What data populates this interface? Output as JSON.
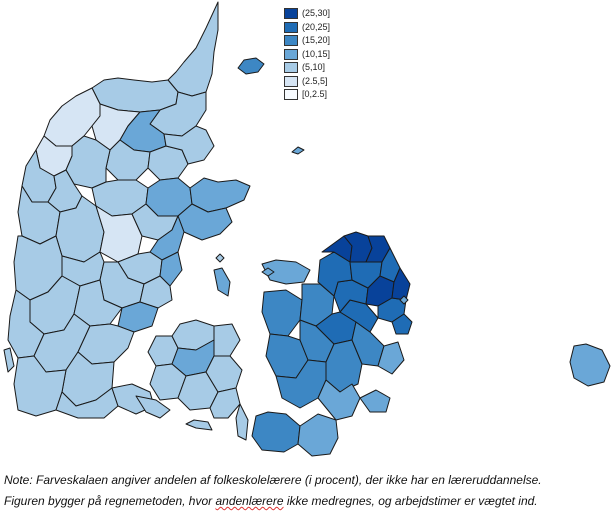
{
  "legend": {
    "items": [
      {
        "label": "(25,30]",
        "color": "#08429a"
      },
      {
        "label": "(20,25]",
        "color": "#1f6cb5"
      },
      {
        "label": "(15,20]",
        "color": "#3d87c4"
      },
      {
        "label": "(10,15]",
        "color": "#6aa7d7"
      },
      {
        "label": "(5,10]",
        "color": "#a7cbe6"
      },
      {
        "label": "(2.5,5]",
        "color": "#d6e5f4"
      },
      {
        "label": "[0,2.5]",
        "color": "#f7fbff"
      }
    ]
  },
  "note": {
    "line1": "Note: Farveskalaen angiver andelen af folkeskolelærere (i procent), der ikke har en læreruddannelse.",
    "line2_before": "Figuren bygger på regnemetoden, hvor ",
    "line2_flagged": "andenlærere",
    "line2_after": " ikke medregnes, og arbejdstimer er vægtet ind."
  },
  "regions": [
    {
      "id": "nordjylland-top",
      "class": "(10,15]"
    },
    {
      "id": "thy-mors",
      "class": "(2.5,5]"
    },
    {
      "id": "himmerland",
      "class": "(5,10]"
    },
    {
      "id": "midtjylland",
      "class": "(5,10]"
    },
    {
      "id": "djursland",
      "class": "(10,15]"
    },
    {
      "id": "vestjylland",
      "class": "(5,10]"
    },
    {
      "id": "sydjylland",
      "class": "(5,10]"
    },
    {
      "id": "fyn",
      "class": "(5,10]"
    },
    {
      "id": "lolland-falster",
      "class": "(10,15]"
    },
    {
      "id": "vestsjaelland",
      "class": "(15,20]"
    },
    {
      "id": "storkoebenhavn",
      "class": "(20,25]"
    },
    {
      "id": "nordsjaelland",
      "class": "(25,30]"
    },
    {
      "id": "bornholm",
      "class": "(10,15]"
    },
    {
      "id": "anholt-laesoe",
      "class": "(15,20]"
    }
  ]
}
